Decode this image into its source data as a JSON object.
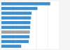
{
  "chart_data": {
    "type": "bar",
    "orientation": "horizontal",
    "categories": [
      null,
      null,
      null,
      null,
      null,
      null,
      null,
      null,
      null,
      null
    ],
    "values": [
      4200,
      3100,
      2600,
      2550,
      2500,
      2480,
      2450,
      2420,
      2350,
      1700
    ],
    "colors": [
      "#3b8fce",
      "#3b8fce",
      "#3b8fce",
      "#3b8fce",
      "#3b8fce",
      "#3b8fce",
      "#a0a0a0",
      "#3b8fce",
      "#3b8fce",
      "#3b8fce"
    ],
    "xlim": [
      0,
      5000
    ],
    "xticks": [
      0,
      1000,
      2000,
      3000,
      4000,
      5000
    ],
    "grid": true,
    "tick_labels": false
  }
}
